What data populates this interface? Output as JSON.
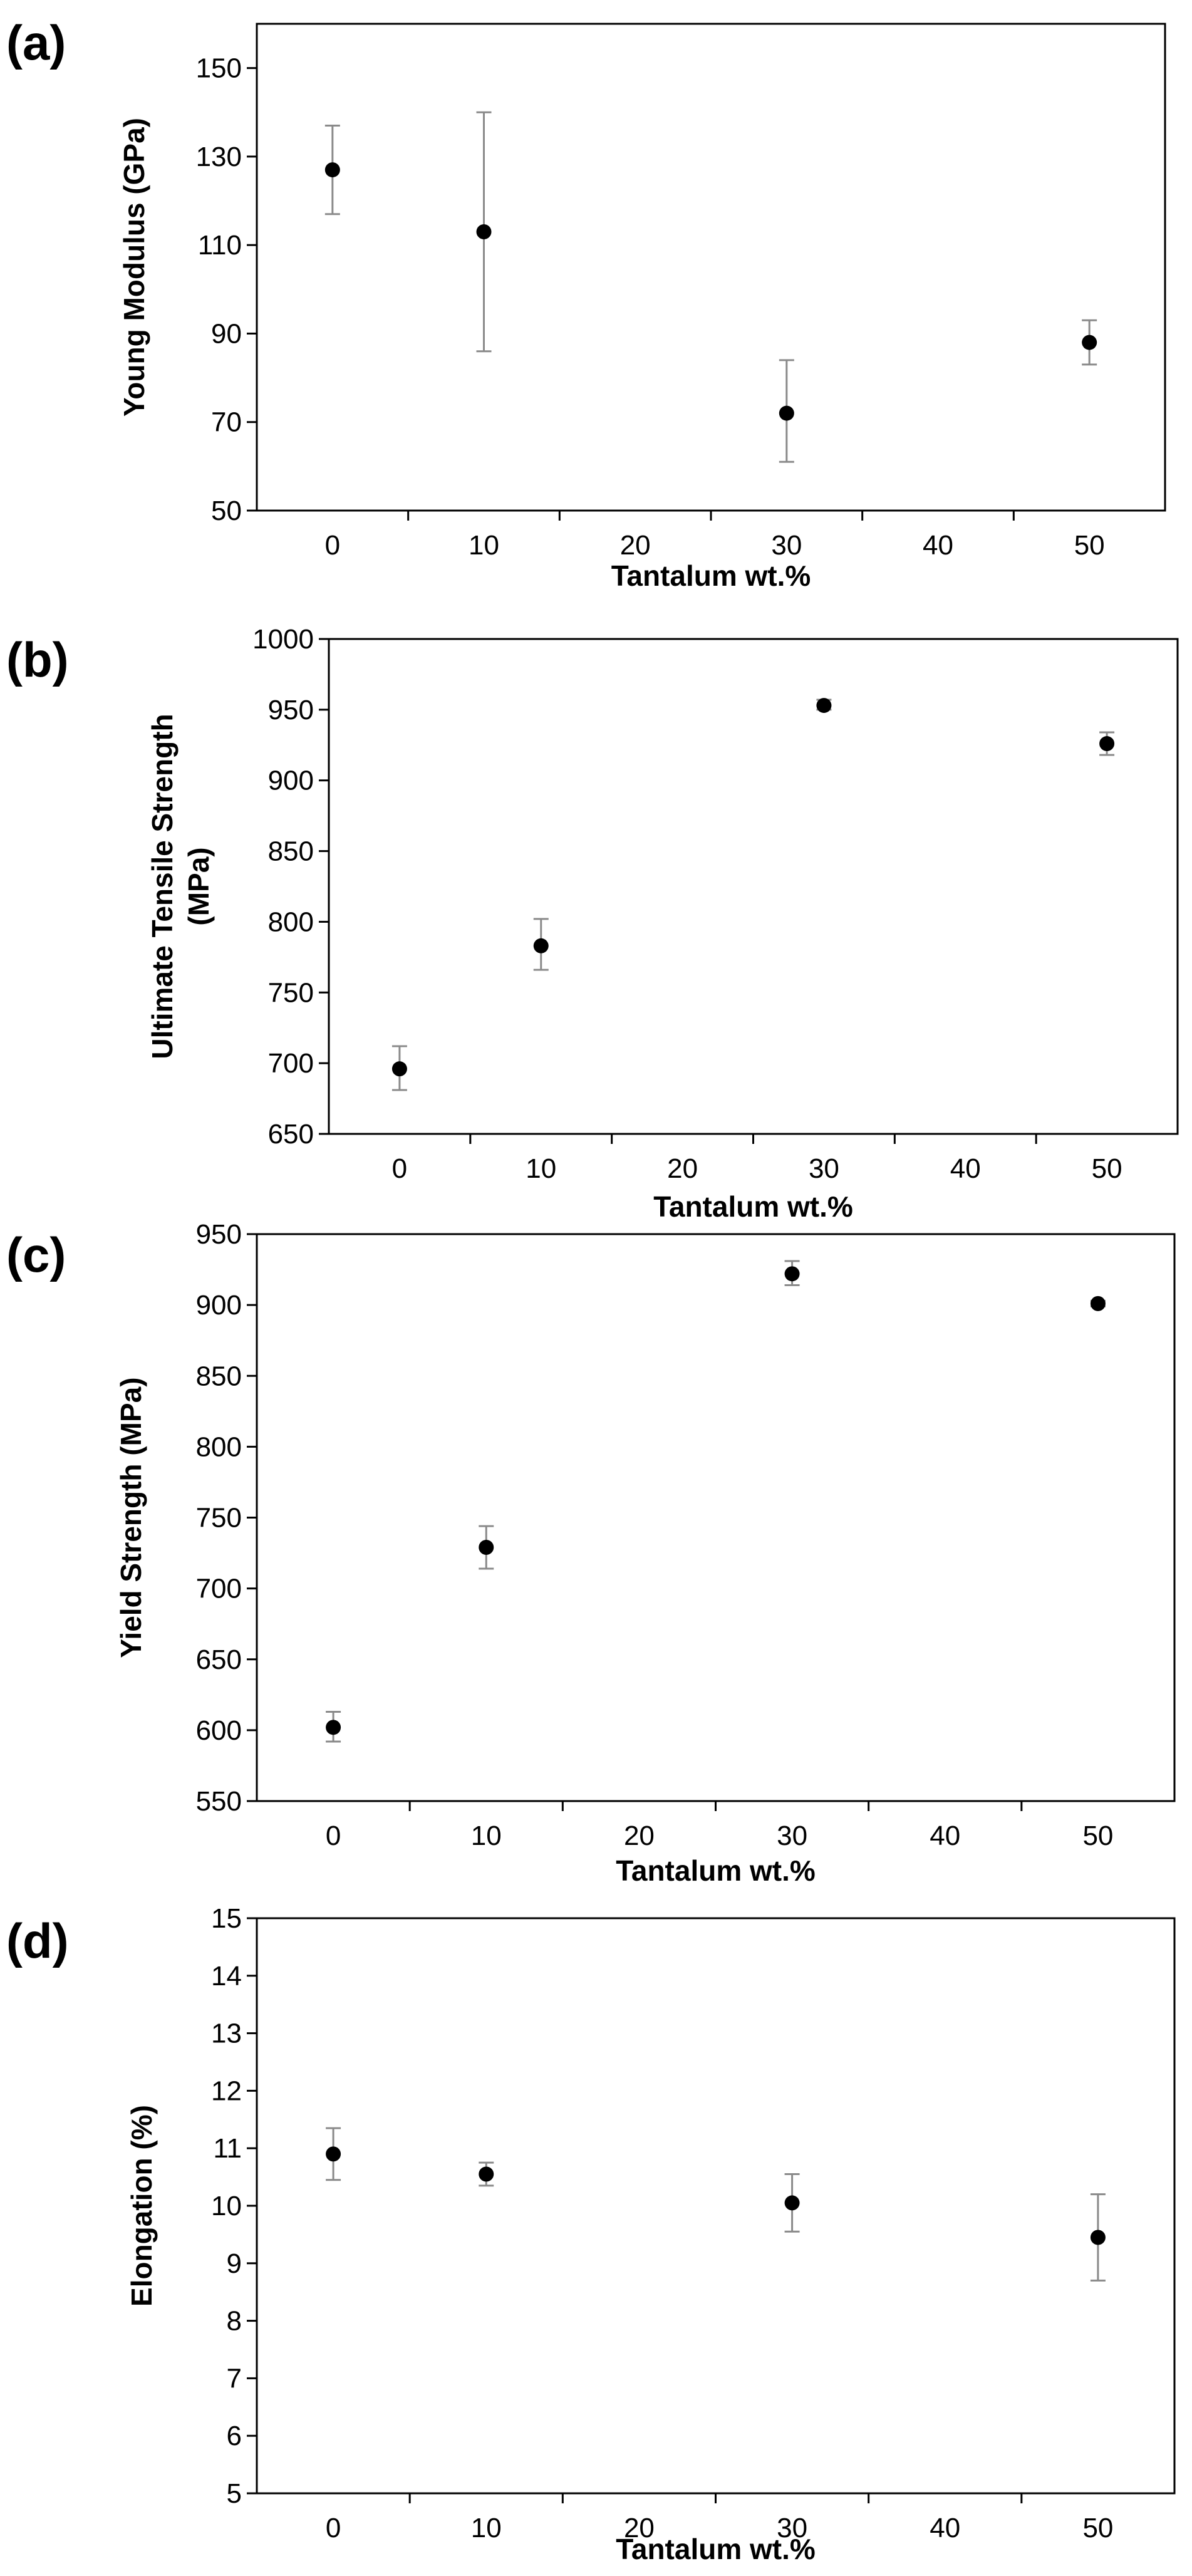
{
  "chart_data": [
    {
      "type": "scatter",
      "panel_label": "(a)",
      "xlabel": "Tantalum wt.%",
      "ylabel": "Young Modulus (GPa)",
      "x_ticks": [
        0,
        10,
        20,
        30,
        40,
        50
      ],
      "y_ticks": [
        50,
        70,
        90,
        110,
        130,
        150
      ],
      "xlim": [
        -5,
        55
      ],
      "ylim": [
        50,
        160
      ],
      "series": [
        {
          "name": "Young Modulus",
          "x": [
            0,
            10,
            30,
            50
          ],
          "y": [
            127,
            113,
            72,
            88
          ],
          "err_low": [
            117,
            86,
            61,
            83
          ],
          "err_high": [
            137,
            140,
            84,
            93
          ]
        }
      ]
    },
    {
      "type": "scatter",
      "panel_label": "(b)",
      "xlabel": "Tantalum wt.%",
      "ylabel_lines": [
        "Ultimate Tensile Strength",
        "(MPa)"
      ],
      "x_ticks": [
        0,
        10,
        20,
        30,
        40,
        50
      ],
      "y_ticks": [
        650,
        700,
        750,
        800,
        850,
        900,
        950,
        1000
      ],
      "xlim": [
        -5,
        55
      ],
      "ylim": [
        650,
        1000
      ],
      "series": [
        {
          "name": "Ultimate Tensile Strength",
          "x": [
            0,
            10,
            30,
            50
          ],
          "y": [
            696,
            783,
            953,
            926
          ],
          "err_low": [
            681,
            766,
            950,
            918
          ],
          "err_high": [
            712,
            802,
            957,
            934
          ]
        }
      ]
    },
    {
      "type": "scatter",
      "panel_label": "(c)",
      "xlabel": "Tantalum wt.%",
      "ylabel": "Yield Strength (MPa)",
      "x_ticks": [
        0,
        10,
        20,
        30,
        40,
        50
      ],
      "y_ticks": [
        550,
        600,
        650,
        700,
        750,
        800,
        850,
        900,
        950
      ],
      "xlim": [
        -5,
        55
      ],
      "ylim": [
        550,
        950
      ],
      "series": [
        {
          "name": "Yield Strength",
          "x": [
            0,
            10,
            30,
            50
          ],
          "y": [
            602,
            729,
            922,
            901
          ],
          "err_low": [
            592,
            714,
            914,
            899
          ],
          "err_high": [
            613,
            744,
            931,
            903
          ]
        }
      ]
    },
    {
      "type": "scatter",
      "panel_label": "(d)",
      "xlabel": "Tantalum wt.%",
      "ylabel": "Elongation (%)",
      "x_ticks": [
        0,
        10,
        20,
        30,
        40,
        50
      ],
      "y_ticks": [
        5,
        6,
        7,
        8,
        9,
        10,
        11,
        12,
        13,
        14,
        15
      ],
      "xlim": [
        -5,
        55
      ],
      "ylim": [
        5,
        15
      ],
      "series": [
        {
          "name": "Elongation",
          "x": [
            0,
            10,
            30,
            50
          ],
          "y": [
            10.9,
            10.55,
            10.05,
            9.45
          ],
          "err_low": [
            10.45,
            10.35,
            9.55,
            8.7
          ],
          "err_high": [
            11.35,
            10.75,
            10.55,
            10.2
          ]
        }
      ]
    }
  ]
}
